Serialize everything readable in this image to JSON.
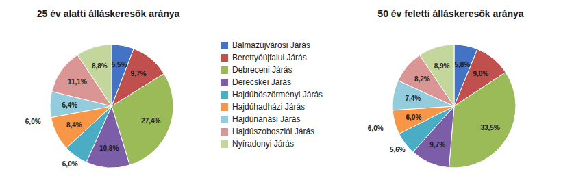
{
  "chart_data": [
    {
      "type": "pie",
      "title": "25 év alatti álláskeresők aránya",
      "categories": [
        "Balmazújvárosi Járás",
        "Berettyóújfalui Járás",
        "Debreceni Járás",
        "Derecskei Járás",
        "Hajdúböszörményi Járás",
        "Hajdúhadházi Járás",
        "Hajdúnánási Járás",
        "Hajdúszoboszlói Járás",
        "Nyíradonyi Járás"
      ],
      "values": [
        5.5,
        9.7,
        27.4,
        10.8,
        6.0,
        8.4,
        6.4,
        11.1,
        8.8
      ],
      "value_labels": [
        "5,5%",
        "9,7%",
        "27,4%",
        "10,8%",
        "6,0%",
        "8,4%",
        "6,4%",
        "11,1%",
        "8,8%"
      ],
      "colors": [
        "#4472C4",
        "#C0504D",
        "#9BBB59",
        "#7B5EA7",
        "#4BACC6",
        "#F79646",
        "#93CDDD",
        "#D99694",
        "#C3D69B"
      ],
      "data_labels": true,
      "legend": "center",
      "annotations": [
        "6,0%"
      ]
    },
    {
      "type": "pie",
      "title": "50 év feletti álláskeresők aránya",
      "categories": [
        "Balmazújvárosi Járás",
        "Berettyóújfalui Járás",
        "Debreceni Járás",
        "Derecskei Járás",
        "Hajdúböszörményi Járás",
        "Hajdúhadházi Járás",
        "Hajdúnánási Járás",
        "Hajdúszoboszlói Járás",
        "Nyíradonyi Járás"
      ],
      "values": [
        5.8,
        9.0,
        33.5,
        9.7,
        5.6,
        6.0,
        7.4,
        8.2,
        8.9
      ],
      "value_labels": [
        "5,8%",
        "9,0%",
        "33,5%",
        "9,7%",
        "5,6%",
        "6,0%",
        "7,4%",
        "8,2%",
        "8,9%"
      ],
      "colors": [
        "#4472C4",
        "#C0504D",
        "#9BBB59",
        "#7B5EA7",
        "#4BACC6",
        "#F79646",
        "#93CDDD",
        "#D99694",
        "#C3D69B"
      ],
      "data_labels": true,
      "annotations": [
        "6,0%"
      ]
    }
  ]
}
